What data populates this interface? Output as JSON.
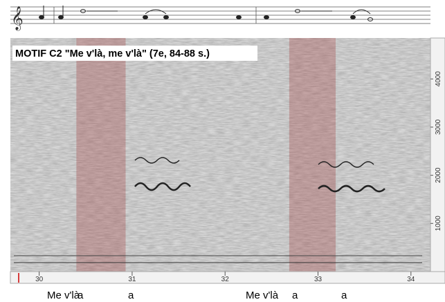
{
  "title": "MOTIF C2 \"Me v'là, me v'là\" (7e, 84-88 s.)",
  "time_axis": {
    "lim": [
      29.69,
      34.21
    ],
    "ticks": [
      30,
      31,
      32,
      33,
      34
    ]
  },
  "freq_axis": {
    "lim": [
      0,
      4850
    ],
    "ticks": [
      1000,
      2000,
      3000,
      4000
    ]
  },
  "highlights": [
    [
      30.4,
      30.93
    ],
    [
      32.69,
      33.19
    ]
  ],
  "lyrics": [
    "Me v'là",
    "a",
    "a",
    "Me v'là",
    "a",
    "a"
  ]
}
